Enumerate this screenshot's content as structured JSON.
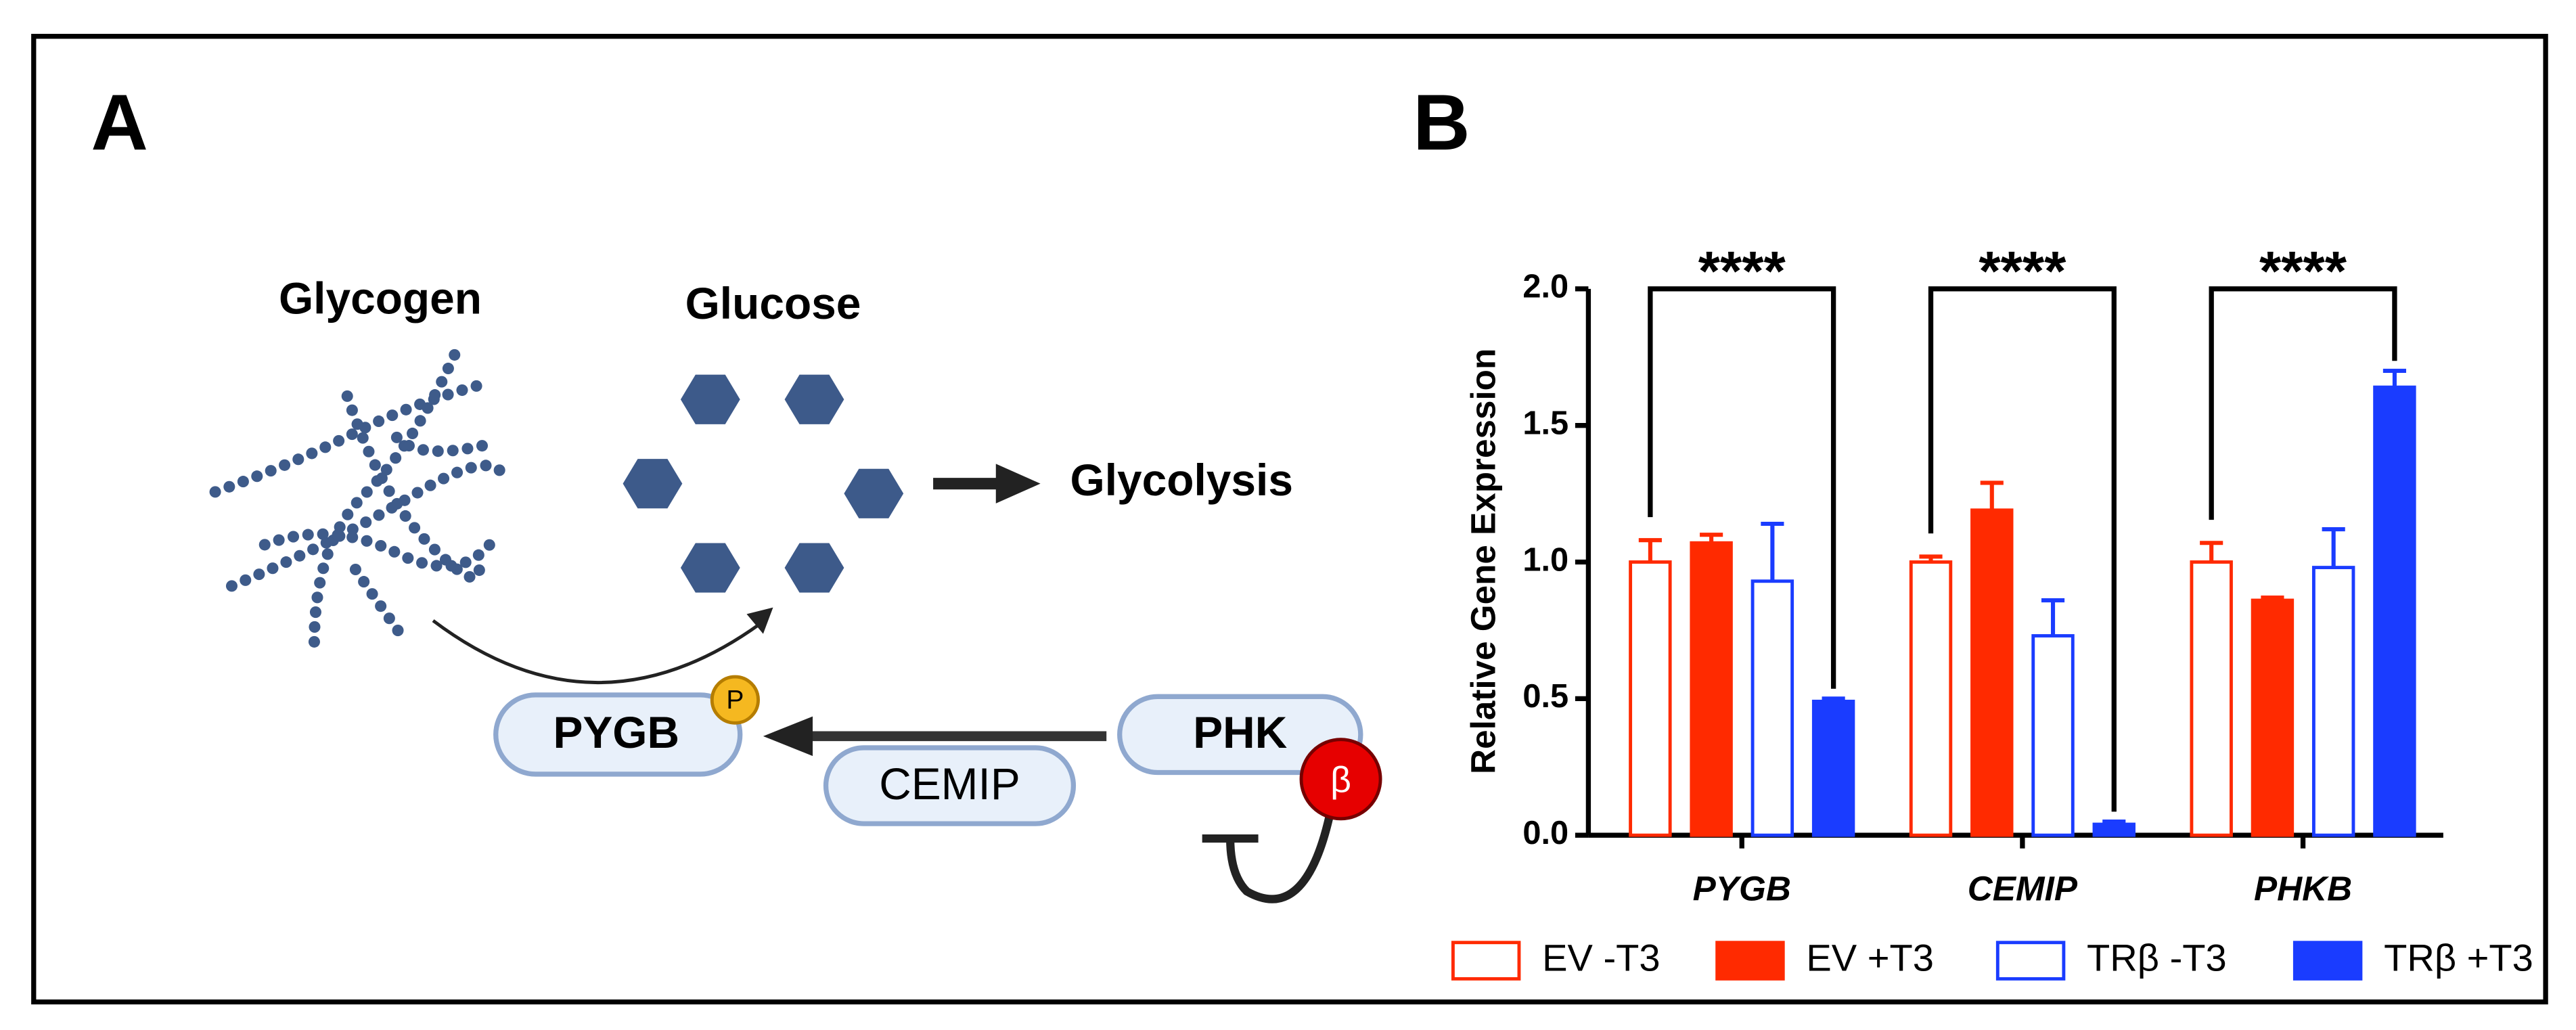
{
  "panel_labels": [
    "A",
    "B"
  ],
  "diagram": {
    "glycogen": "Glycogen",
    "glucose": "Glucose",
    "glycolysis": "Glycolysis",
    "pygb": "PYGB",
    "phospho": "P",
    "cemip": "CEMIP",
    "phk": "PHK",
    "beta": "β"
  },
  "chart_data": {
    "type": "bar",
    "ylabel": "Relative Gene Expression",
    "categories": [
      "PYGB",
      "CEMIP",
      "PHKB"
    ],
    "series": [
      {
        "name": "EV -T3",
        "color": "#ff2a00",
        "filled": false,
        "values": [
          1.0,
          1.0,
          1.0
        ],
        "errors": [
          0.08,
          0.02,
          0.07
        ]
      },
      {
        "name": "EV +T3",
        "color": "#ff2a00",
        "filled": true,
        "values": [
          1.07,
          1.19,
          0.86
        ],
        "errors": [
          0.03,
          0.1,
          0.01
        ]
      },
      {
        "name": "TRβ -T3",
        "color": "#1a3cff",
        "filled": false,
        "values": [
          0.93,
          0.73,
          0.98
        ],
        "errors": [
          0.21,
          0.13,
          0.14
        ]
      },
      {
        "name": "TRβ +T3",
        "color": "#1a3cff",
        "filled": true,
        "values": [
          0.49,
          0.04,
          1.64
        ],
        "errors": [
          0.01,
          0.01,
          0.06
        ]
      }
    ],
    "significance": [
      "****",
      "****",
      "****"
    ],
    "ylim": [
      0,
      2
    ],
    "yticks": [
      {
        "value": 0,
        "label": "0.0"
      },
      0.5,
      {
        "value": 1,
        "label": "1.0"
      },
      1.5,
      {
        "value": 2,
        "label": "2.0"
      }
    ]
  }
}
